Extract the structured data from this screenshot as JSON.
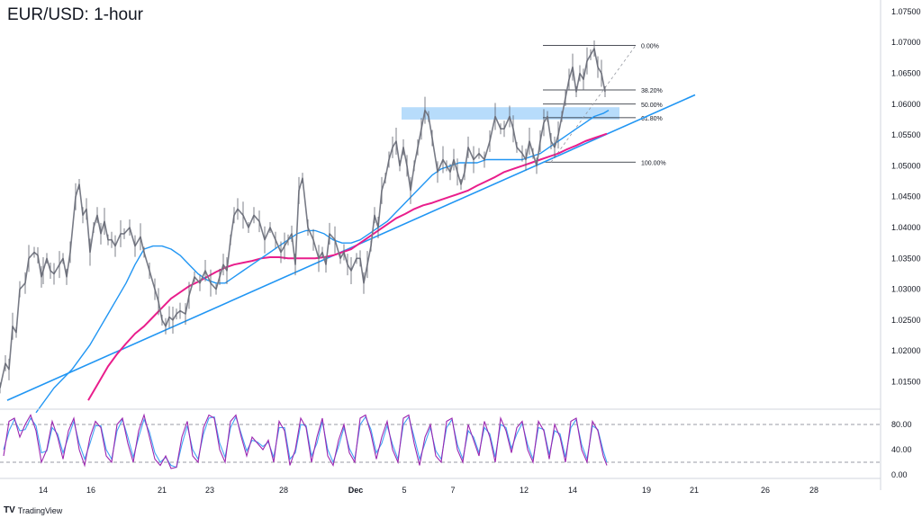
{
  "chart_data": {
    "type": "line",
    "title": "EUR/USD: 1-hour",
    "price_axis": {
      "ylim": [
        1.011,
        1.076
      ],
      "ticks": [
        "1.07500",
        "1.07000",
        "1.06500",
        "1.06000",
        "1.05500",
        "1.05000",
        "1.04500",
        "1.04000",
        "1.03500",
        "1.03000",
        "1.02500",
        "1.02000",
        "1.01500"
      ]
    },
    "x_axis": {
      "labels": [
        "14",
        "16",
        "21",
        "23",
        "28",
        "Dec",
        "5",
        "7",
        "12",
        "14",
        "19",
        "21",
        "26",
        "28"
      ]
    },
    "price_series": {
      "name": "",
      "x": [
        0,
        6,
        10,
        14,
        18,
        22,
        28,
        32,
        38,
        42,
        46,
        48,
        52,
        56,
        60,
        66,
        70,
        74,
        78,
        84,
        88,
        92,
        96,
        100,
        104,
        108,
        112,
        116,
        120,
        124,
        128,
        134,
        138,
        144,
        150,
        156,
        160,
        166,
        172,
        176,
        180,
        184,
        188,
        192,
        196,
        200,
        206,
        210,
        216,
        222,
        228,
        234,
        240,
        244,
        248,
        252,
        256,
        260,
        264,
        270,
        276,
        282,
        288,
        294,
        300,
        306,
        312,
        316,
        320,
        324,
        328,
        332,
        336,
        342,
        348,
        354,
        358,
        362,
        366,
        372,
        378,
        382,
        386,
        390,
        396,
        400,
        404,
        408,
        412,
        416,
        420,
        424,
        428,
        432,
        436,
        440,
        444,
        448,
        452,
        456,
        460,
        464,
        468,
        472,
        476,
        480,
        486,
        492,
        496,
        500,
        504,
        508,
        512,
        516,
        520,
        526,
        532,
        538,
        544,
        550,
        556,
        560,
        566,
        570,
        574,
        580,
        584,
        588,
        592,
        596,
        600,
        604,
        608,
        612,
        616,
        620,
        624,
        628,
        632,
        636,
        640,
        644,
        648,
        652,
        656,
        660,
        664,
        668,
        672
      ],
      "y": [
        1.014,
        1.018,
        1.017,
        1.024,
        1.023,
        1.03,
        1.031,
        1.035,
        1.036,
        1.0355,
        1.032,
        1.033,
        1.035,
        1.033,
        1.0325,
        1.034,
        1.035,
        1.032,
        1.036,
        1.045,
        1.047,
        1.042,
        1.043,
        1.036,
        1.04,
        1.042,
        1.039,
        1.041,
        1.038,
        1.038,
        1.037,
        1.039,
        1.039,
        1.04,
        1.037,
        1.0385,
        1.036,
        1.033,
        1.03,
        1.028,
        1.025,
        1.024,
        1.0255,
        1.025,
        1.026,
        1.0265,
        1.026,
        1.029,
        1.032,
        1.031,
        1.033,
        1.031,
        1.03,
        1.032,
        1.034,
        1.033,
        1.038,
        1.042,
        1.043,
        1.042,
        1.04,
        1.042,
        1.041,
        1.038,
        1.04,
        1.038,
        1.036,
        1.037,
        1.038,
        1.039,
        1.034,
        1.046,
        1.048,
        1.04,
        1.038,
        1.035,
        1.036,
        1.034,
        1.039,
        1.038,
        1.035,
        1.036,
        1.034,
        1.033,
        1.035,
        1.035,
        1.031,
        1.034,
        1.037,
        1.042,
        1.04,
        1.046,
        1.048,
        1.051,
        1.053,
        1.054,
        1.05,
        1.053,
        1.05,
        1.046,
        1.05,
        1.053,
        1.056,
        1.059,
        1.058,
        1.0545,
        1.049,
        1.051,
        1.05,
        1.049,
        1.051,
        1.049,
        1.047,
        1.049,
        1.053,
        1.051,
        1.052,
        1.051,
        1.054,
        1.058,
        1.056,
        1.056,
        1.058,
        1.056,
        1.053,
        1.052,
        1.051,
        1.054,
        1.052,
        1.05,
        1.054,
        1.057,
        1.058,
        1.054,
        1.053,
        1.055,
        1.058,
        1.061,
        1.064,
        1.066,
        1.062,
        1.065,
        1.064,
        1.067,
        1.068,
        1.069,
        1.066,
        1.065,
        1.062
      ],
      "color": "#787b86"
    },
    "ma_fast": {
      "name": "",
      "x": [
        40,
        60,
        80,
        100,
        120,
        140,
        150,
        160,
        170,
        180,
        190,
        200,
        210,
        220,
        230,
        240,
        250,
        260,
        270,
        280,
        290,
        300,
        310,
        320,
        330,
        340,
        350,
        360,
        370,
        380,
        390,
        400,
        410,
        420,
        430,
        440,
        450,
        460,
        470,
        480,
        490,
        500,
        510,
        520,
        530,
        540,
        550,
        560,
        570,
        580,
        590,
        600,
        610,
        620,
        630,
        640,
        650,
        660,
        670,
        676
      ],
      "y": [
        1.01,
        1.014,
        1.017,
        1.021,
        1.026,
        1.031,
        1.034,
        1.0365,
        1.037,
        1.037,
        1.0365,
        1.0355,
        1.034,
        1.0325,
        1.0315,
        1.031,
        1.031,
        1.032,
        1.033,
        1.034,
        1.035,
        1.036,
        1.037,
        1.038,
        1.039,
        1.0395,
        1.0395,
        1.039,
        1.038,
        1.0375,
        1.0375,
        1.038,
        1.039,
        1.04,
        1.041,
        1.0425,
        1.044,
        1.0455,
        1.047,
        1.0485,
        1.0495,
        1.05,
        1.0505,
        1.0505,
        1.0505,
        1.051,
        1.051,
        1.051,
        1.051,
        1.051,
        1.0515,
        1.052,
        1.053,
        1.054,
        1.055,
        1.056,
        1.057,
        1.058,
        1.0585,
        1.059
      ],
      "color": "#2196f3"
    },
    "ma_slow": {
      "name": "",
      "x": [
        98,
        110,
        120,
        130,
        140,
        150,
        160,
        170,
        180,
        190,
        200,
        210,
        220,
        230,
        240,
        250,
        260,
        270,
        280,
        290,
        300,
        310,
        320,
        330,
        340,
        350,
        360,
        370,
        380,
        390,
        400,
        410,
        420,
        430,
        440,
        450,
        460,
        470,
        480,
        490,
        500,
        510,
        520,
        530,
        540,
        550,
        560,
        570,
        580,
        590,
        600,
        610,
        620,
        630,
        640,
        650,
        660,
        670,
        674
      ],
      "y": [
        1.012,
        1.015,
        1.0175,
        1.0195,
        1.0212,
        1.0228,
        1.024,
        1.0255,
        1.027,
        1.0285,
        1.0295,
        1.0305,
        1.0312,
        1.032,
        1.0328,
        1.0335,
        1.034,
        1.0343,
        1.0346,
        1.035,
        1.0352,
        1.0352,
        1.035,
        1.035,
        1.035,
        1.035,
        1.0352,
        1.0355,
        1.036,
        1.0365,
        1.0375,
        1.0385,
        1.0395,
        1.0405,
        1.0415,
        1.0422,
        1.043,
        1.0436,
        1.044,
        1.0445,
        1.045,
        1.0455,
        1.046,
        1.0468,
        1.0475,
        1.0482,
        1.049,
        1.0495,
        1.05,
        1.0505,
        1.051,
        1.0515,
        1.052,
        1.0527,
        1.0533,
        1.054,
        1.0545,
        1.055,
        1.0552
      ],
      "color": "#e91e8c"
    },
    "trendline": {
      "x": [
        8,
        772
      ],
      "y": [
        1.012,
        1.0615
      ],
      "color": "#2196f3"
    },
    "resistance_zone": {
      "x": [
        446,
        688
      ],
      "y": [
        1.0575,
        1.0595
      ],
      "color": "#90caf9"
    },
    "fibonacci": {
      "x_start": 603,
      "x_end": 706,
      "levels": [
        {
          "label": "0.00%",
          "price": 1.0695
        },
        {
          "label": "38.20%",
          "price": 1.0623
        },
        {
          "label": "50.00%",
          "price": 1.06
        },
        {
          "label": "61.80%",
          "price": 1.0578
        },
        {
          "label": "100.00%",
          "price": 1.0506
        }
      ],
      "diagonal": {
        "x": [
          612,
          706
        ],
        "y": [
          1.0506,
          1.0695
        ]
      }
    },
    "oscillator": {
      "ylim": [
        0,
        100
      ],
      "ticks": [
        "80.00",
        "40.00",
        "0.00"
      ],
      "levels": [
        80,
        20
      ],
      "k_color": "#9c27b0",
      "d_color": "#42a5f5",
      "x": [
        4,
        10,
        16,
        22,
        28,
        34,
        40,
        46,
        52,
        58,
        64,
        70,
        76,
        82,
        88,
        94,
        100,
        106,
        112,
        118,
        124,
        130,
        136,
        142,
        148,
        154,
        160,
        166,
        172,
        178,
        184,
        190,
        196,
        202,
        208,
        214,
        220,
        226,
        232,
        238,
        244,
        250,
        256,
        262,
        268,
        274,
        280,
        286,
        292,
        298,
        304,
        310,
        316,
        322,
        328,
        334,
        340,
        346,
        352,
        358,
        364,
        370,
        376,
        382,
        388,
        394,
        400,
        406,
        412,
        418,
        424,
        430,
        436,
        442,
        448,
        454,
        460,
        466,
        472,
        478,
        484,
        490,
        496,
        502,
        508,
        514,
        520,
        526,
        532,
        538,
        544,
        550,
        556,
        562,
        568,
        574,
        580,
        586,
        592,
        598,
        604,
        610,
        616,
        622,
        628,
        634,
        640,
        646,
        652,
        658,
        664,
        670,
        674
      ],
      "k": [
        30,
        85,
        90,
        60,
        80,
        95,
        70,
        20,
        40,
        85,
        60,
        25,
        70,
        90,
        40,
        15,
        60,
        85,
        75,
        30,
        20,
        80,
        90,
        50,
        20,
        70,
        95,
        60,
        25,
        15,
        30,
        10,
        12,
        60,
        85,
        30,
        20,
        75,
        95,
        90,
        40,
        20,
        85,
        95,
        60,
        30,
        60,
        50,
        40,
        55,
        20,
        85,
        70,
        15,
        40,
        90,
        75,
        20,
        60,
        90,
        30,
        15,
        55,
        80,
        35,
        20,
        90,
        95,
        65,
        25,
        60,
        85,
        40,
        20,
        90,
        95,
        50,
        15,
        60,
        80,
        30,
        20,
        85,
        90,
        40,
        20,
        80,
        55,
        30,
        85,
        60,
        20,
        90,
        70,
        35,
        75,
        85,
        40,
        20,
        85,
        70,
        25,
        80,
        60,
        20,
        85,
        90,
        40,
        20,
        85,
        70,
        30,
        15
      ],
      "d": [
        40,
        70,
        88,
        70,
        72,
        90,
        78,
        35,
        38,
        75,
        65,
        35,
        60,
        85,
        50,
        25,
        50,
        78,
        78,
        40,
        25,
        70,
        88,
        60,
        28,
        60,
        88,
        68,
        35,
        20,
        28,
        15,
        12,
        48,
        78,
        40,
        25,
        65,
        90,
        92,
        50,
        28,
        75,
        92,
        65,
        38,
        55,
        52,
        45,
        52,
        28,
        75,
        75,
        25,
        35,
        80,
        78,
        30,
        50,
        85,
        40,
        20,
        45,
        75,
        42,
        25,
        80,
        92,
        72,
        35,
        50,
        78,
        48,
        25,
        80,
        92,
        60,
        25,
        50,
        75,
        38,
        25,
        75,
        88,
        48,
        25,
        70,
        60,
        35,
        75,
        65,
        28,
        80,
        75,
        42,
        65,
        82,
        48,
        25,
        75,
        72,
        32,
        70,
        65,
        28,
        75,
        88,
        48,
        25,
        78,
        72,
        38,
        20
      ]
    }
  }
}
